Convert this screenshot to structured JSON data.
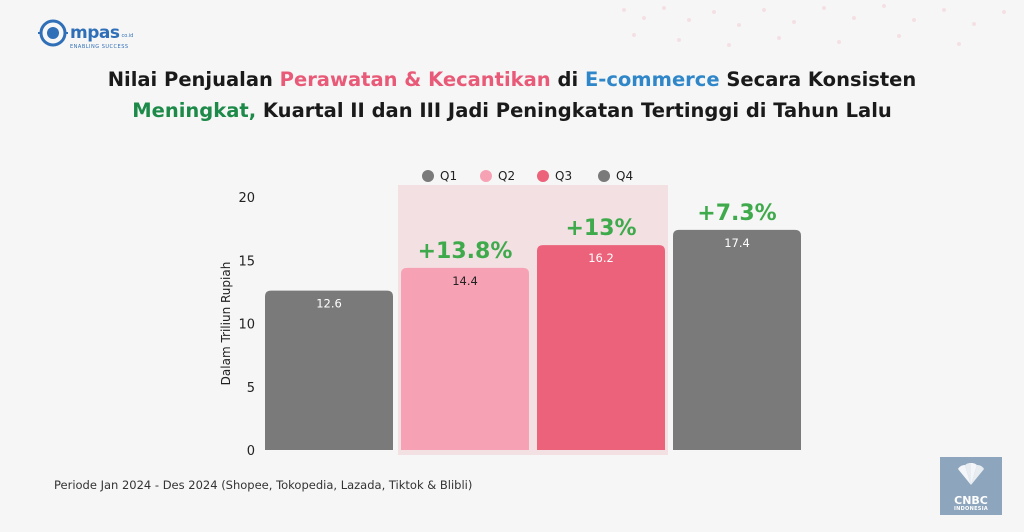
{
  "logo": {
    "text": "mpas",
    "suffix": "co.id",
    "tagline": "ENABLING SUCCESS"
  },
  "title": {
    "line1_a": "Nilai Penjualan ",
    "line1_b": "Perawatan & Kecantikan",
    "line1_c": " di ",
    "line1_d": "E-commerce",
    "line1_e": " Secara Konsisten",
    "line2_a": "Meningkat,",
    "line2_b": " Kuartal II dan III Jadi Peningkatan Tertinggi di Tahun Lalu"
  },
  "footnote": "Periode Jan 2024 - Des 2024 (Shopee, Tokopedia, Lazada, Tiktok & Blibli)",
  "brand": {
    "main": "CNBC",
    "sub": "INDONESIA"
  },
  "colors": {
    "q1": "#7a7a7a",
    "q2": "#f6a2b4",
    "q3": "#ec627b",
    "q4": "#7a7a7a",
    "growth": "#3faa4c",
    "highlight": "#f3e0e3"
  },
  "chart_data": {
    "type": "bar",
    "categories": [
      "Q1",
      "Q2",
      "Q3",
      "Q4"
    ],
    "values": [
      12.6,
      14.4,
      16.2,
      17.4
    ],
    "value_labels": [
      "12.6",
      "14.4",
      "16.2",
      "17.4"
    ],
    "growth_labels": [
      "",
      "+13.8%",
      "+13%",
      "+7.3%"
    ],
    "legend": [
      "Q1",
      "Q2",
      "Q3",
      "Q4"
    ],
    "legend_position": "top",
    "ylabel": "Dalam Triliun Rupiah",
    "ylim": [
      0,
      20
    ],
    "yticks": [
      0,
      5,
      10,
      15,
      20
    ],
    "highlighted_categories": [
      "Q2",
      "Q3"
    ],
    "grid": false
  }
}
